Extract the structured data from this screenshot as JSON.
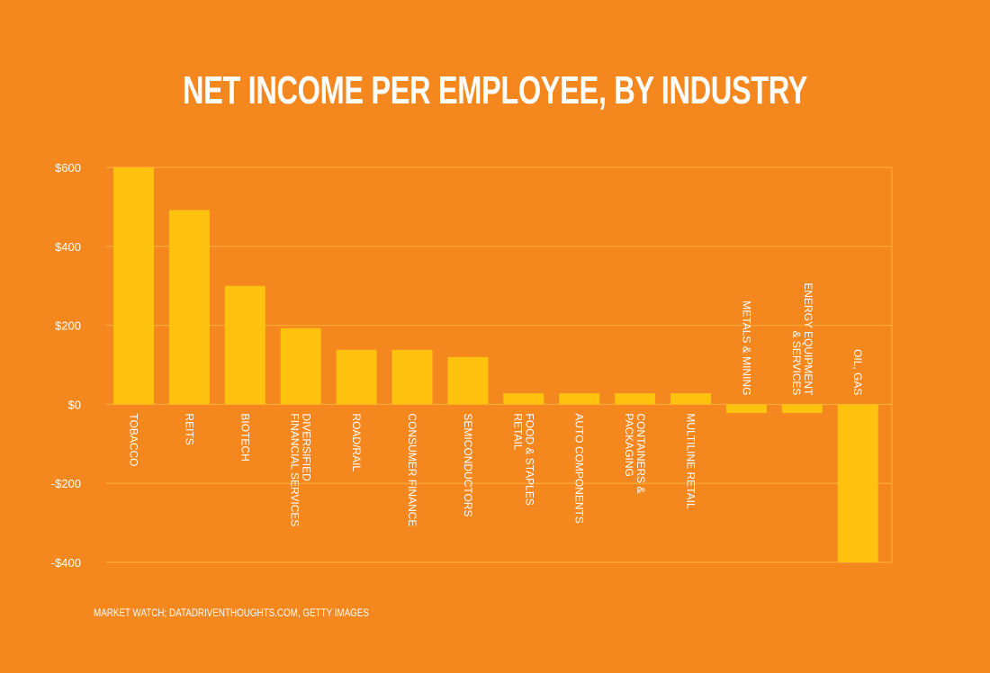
{
  "title": "NET INCOME PER EMPLOYEE, BY INDUSTRY",
  "source": "MARKET WATCH; DATADRIVENTHOUGHTS.COM, GETTY IMAGES",
  "colors": {
    "background": "#f5871f",
    "bar": "#ffc20e",
    "grid": "#ffb13b",
    "text": "#ffffff"
  },
  "chart_data": {
    "type": "bar",
    "title": "NET INCOME PER EMPLOYEE, BY INDUSTRY",
    "xlabel": "",
    "ylabel": "",
    "ylim": [
      -400,
      600
    ],
    "yticks": [
      600,
      400,
      200,
      0,
      -200,
      -400
    ],
    "ytick_labels": [
      "$600",
      "$400",
      "$200",
      "$0",
      "-$200",
      "-$400"
    ],
    "grid": true,
    "categories": [
      "TOBACCO",
      "REITS",
      "BIOTECH",
      "DIVERSIFIED\nFINANCIAL SERVICES",
      "ROAD/RAIL",
      "CONSUMER FINANCE",
      "SEMICONDUCTORS",
      "FOOD & STAPLES\nRETAIL",
      "AUTO COMPONENTS",
      "CONTAINERS &\nPACKAGING",
      "MULTILINE RETAIL",
      "METALS & MINING",
      "ENERGY EQUIPMENT\n& SERVICES",
      "OIL, GAS"
    ],
    "values": [
      600,
      492,
      300,
      193,
      138,
      138,
      120,
      28,
      28,
      28,
      28,
      -22,
      -22,
      -400
    ]
  }
}
